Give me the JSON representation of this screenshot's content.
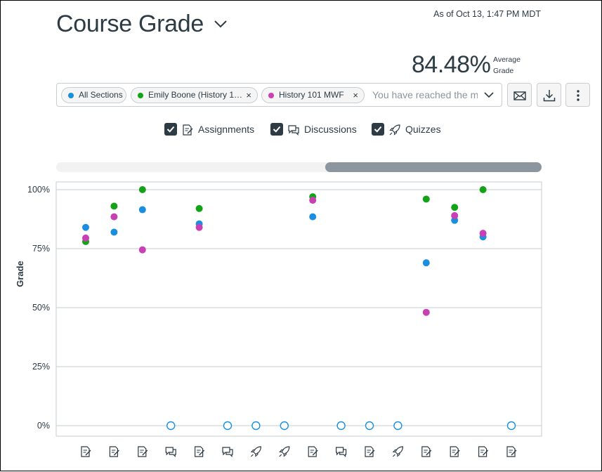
{
  "header": {
    "title": "Course Grade",
    "as_of": "As of Oct 13, 1:47 PM MDT",
    "average_value": "84.48%",
    "average_label": "Average Grade"
  },
  "filter": {
    "chips": [
      {
        "label": "All Sections",
        "color": "#1a8fe0",
        "removable": false
      },
      {
        "label": "Emily Boone (History 1…",
        "color": "#14a318",
        "removable": true
      },
      {
        "label": "History 101 MWF",
        "color": "#c93fb4",
        "removable": true
      }
    ],
    "input_text": "You have reached the ma",
    "remove_glyph": "×"
  },
  "toolbar": {
    "icons": [
      "mail-icon",
      "download-icon",
      "more-vertical-icon"
    ]
  },
  "filters": {
    "assignments": {
      "label": "Assignments",
      "checked": true,
      "icon": "assignment-icon"
    },
    "discussions": {
      "label": "Discussions",
      "checked": true,
      "icon": "discussion-icon"
    },
    "quizzes": {
      "label": "Quizzes",
      "checked": true,
      "icon": "quiz-icon"
    }
  },
  "chart_data": {
    "type": "scatter",
    "ylabel": "Grade",
    "xlabel": "",
    "ylim": [
      0,
      100
    ],
    "yticks": [
      "0%",
      "25%",
      "50%",
      "75%",
      "100%"
    ],
    "ytick_values": [
      0,
      25,
      50,
      75,
      100
    ],
    "grid": true,
    "x_categories": [
      "assignment",
      "assignment",
      "assignment",
      "discussion",
      "assignment",
      "discussion",
      "quiz",
      "quiz",
      "assignment",
      "discussion",
      "assignment",
      "quiz",
      "assignment",
      "assignment",
      "assignment",
      "assignment"
    ],
    "series": [
      {
        "color": "#1a8fe0",
        "filled": [
          84,
          82,
          91.5,
          null,
          85.5,
          null,
          null,
          null,
          88.5,
          null,
          null,
          null,
          69,
          87,
          80,
          null
        ]
      },
      {
        "color": "#14a318",
        "filled": [
          78,
          93,
          100,
          null,
          92,
          null,
          null,
          null,
          97,
          null,
          null,
          null,
          96,
          92.5,
          100,
          null
        ]
      },
      {
        "color": "#c93fb4",
        "filled": [
          79.5,
          88.5,
          74.5,
          null,
          84,
          null,
          null,
          null,
          95.5,
          null,
          null,
          null,
          48,
          89,
          81.5,
          null
        ]
      }
    ],
    "hollow_points": {
      "color": "#1a8fe0",
      "values": [
        null,
        null,
        null,
        0,
        null,
        0,
        0,
        0,
        null,
        0,
        0,
        0,
        null,
        null,
        null,
        0
      ]
    }
  }
}
